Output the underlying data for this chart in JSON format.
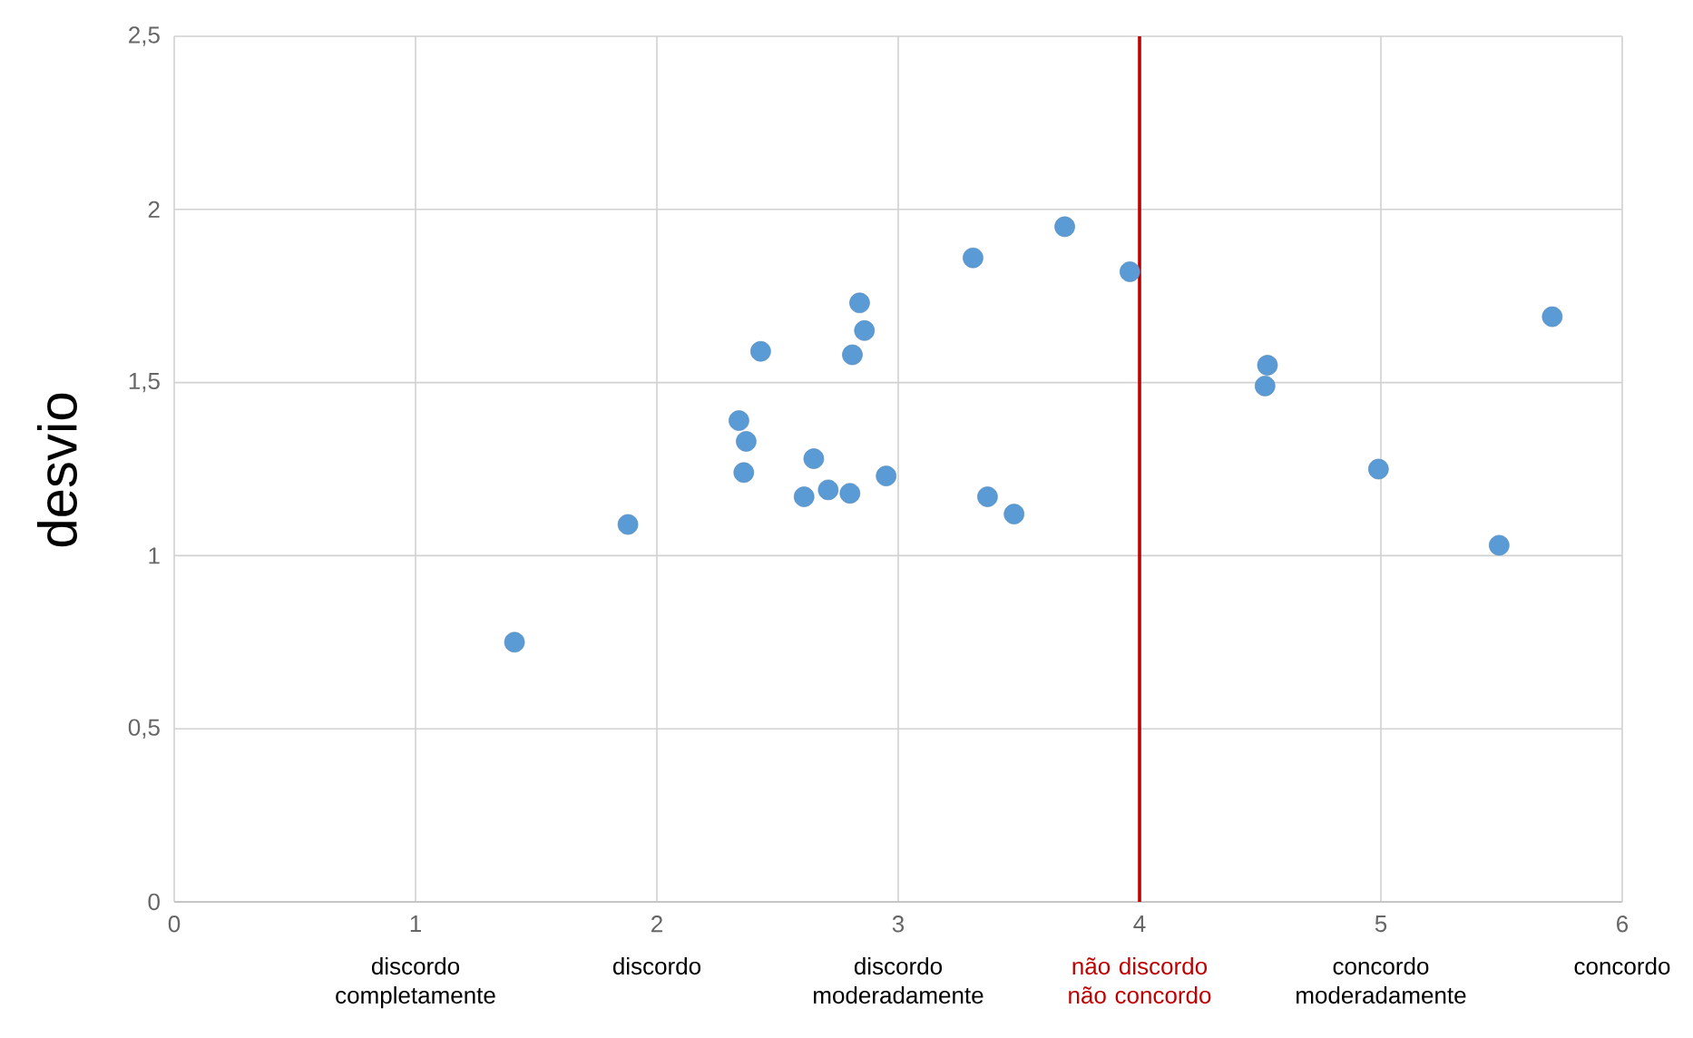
{
  "chart_data": {
    "type": "scatter",
    "ylabel": "desvio",
    "xlim": [
      0,
      6
    ],
    "xticks": [
      0,
      1,
      2,
      3,
      4,
      5,
      6
    ],
    "ylim": [
      0,
      2.5
    ],
    "yticks": [
      0,
      {
        "value": 0.5,
        "label": "0,5"
      },
      1,
      {
        "value": 1.5,
        "label": "1,5"
      },
      2,
      {
        "value": 2.5,
        "label": "2,5"
      }
    ],
    "grid": true,
    "marker": "circle",
    "series": [
      {
        "color": "#5b9bd5",
        "x": [
          1.41,
          1.88,
          2.43,
          2.34,
          2.37,
          2.36,
          2.65,
          2.61,
          2.71,
          2.8,
          2.95,
          2.84,
          2.86,
          2.81,
          3.31,
          3.69,
          3.96,
          3.37,
          3.48,
          4.53,
          4.52,
          4.99,
          5.71,
          5.49
        ],
        "values": [
          0.75,
          1.09,
          1.59,
          1.39,
          1.33,
          1.24,
          1.28,
          1.17,
          1.19,
          1.18,
          1.23,
          1.73,
          1.65,
          1.58,
          1.86,
          1.95,
          1.82,
          1.17,
          1.12,
          1.55,
          1.49,
          1.25,
          1.69,
          1.03
        ]
      }
    ],
    "ref_lines": [
      {
        "axis": "x",
        "value": 4,
        "label": "não discordo não concordo",
        "color": "#c00000"
      }
    ],
    "annotations": [
      "discordo completamente",
      "discordo",
      "discordo moderadamente",
      "concordo moderadamente",
      "concordo"
    ]
  }
}
